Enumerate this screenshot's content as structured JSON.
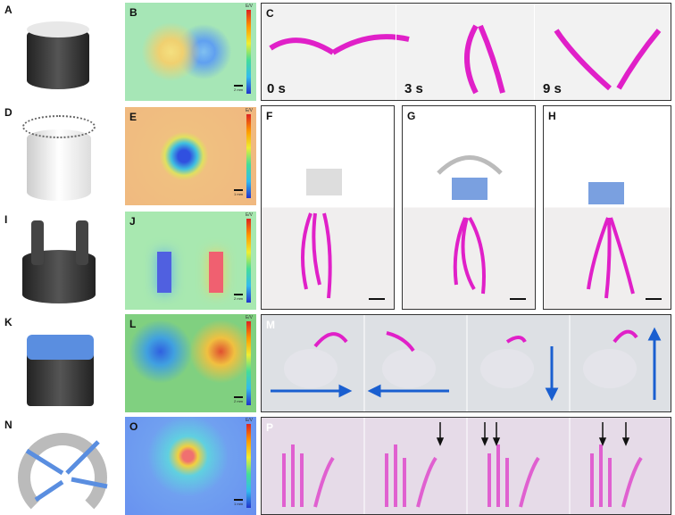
{
  "panels": {
    "A": "A",
    "B": "B",
    "C": "C",
    "D": "D",
    "E": "E",
    "F": "F",
    "G": "G",
    "H": "H",
    "I": "I",
    "J": "J",
    "K": "K",
    "L": "L",
    "M": "M",
    "N": "N",
    "O": "O",
    "P": "P"
  },
  "colorbar_label": "E/V",
  "scale_bars": {
    "B": "2 mm",
    "E": "1 mm",
    "J": "2 mm",
    "L": "2 mm",
    "O": "1 mm"
  },
  "panel_C": {
    "times": [
      "0 s",
      "3 s",
      "9 s"
    ]
  },
  "colors": {
    "strand": "#e020c8",
    "arrow": "#1a5fd0",
    "device_dark": "#333333",
    "magnet_blue": "#5a8ee0"
  },
  "icons": {
    "arrows": [
      "arrow-right",
      "arrow-left",
      "arrow-down",
      "arrow-up"
    ]
  }
}
